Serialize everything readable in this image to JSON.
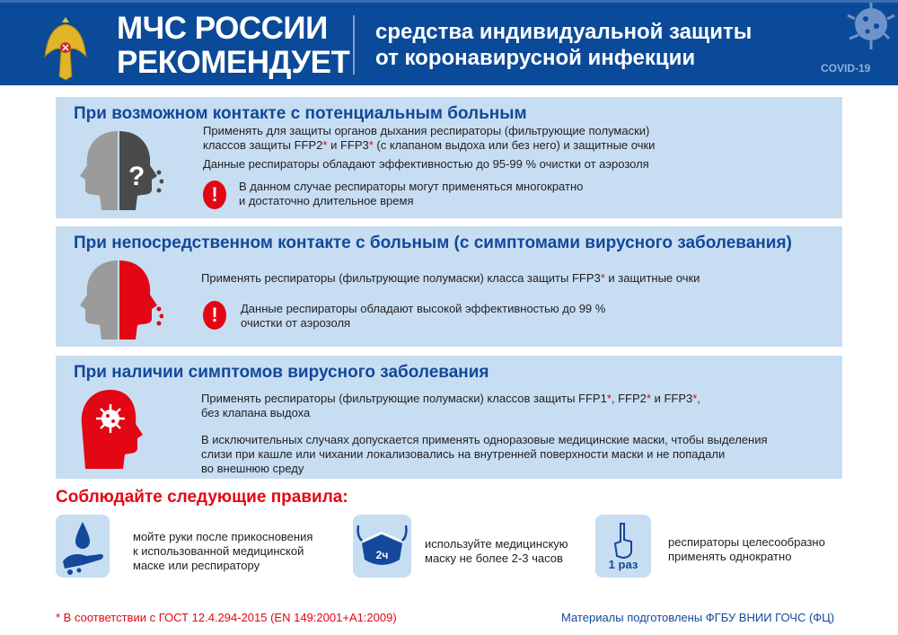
{
  "header": {
    "title_line1": "МЧС РОССИИ",
    "title_line2": "РЕКОМЕНДУЕТ",
    "subtitle_line1": "средства индивидуальной защиты",
    "subtitle_line2": "от коронавирусной инфекции",
    "badge": "COVID-19"
  },
  "sections": [
    {
      "title": "При возможном контакте с потенциальным больным",
      "p1a": "Применять для защиты органов дыхания респираторы (фильтрующие полумаски)",
      "p1b": "классов защиты  FFP2",
      "p1c": " и FFP3",
      "p1d": " (с клапаном выдоха или без него) и защитные очки",
      "p2": "Данные респираторы обладают эффективностью до 95-99 % очистки от аэрозоля",
      "warn1": "В данном случае респираторы могут применяться многократно",
      "warn2": "и достаточно длительное время"
    },
    {
      "title": "При непосредственном контакте с больным (с симптомами вирусного заболевания)",
      "p1a": "Применять респираторы (фильтрующие полумаски) класса защиты FFP3",
      "p1b": " и защитные очки",
      "warn1": "Данные респираторы обладают высокой эффективностью до 99 %",
      "warn2": "очистки от аэрозоля"
    },
    {
      "title": "При наличии симптомов вирусного заболевания",
      "p1a": "Применять респираторы (фильтрующие полумаски) классов защиты FFP1",
      "p1b": ", FFP2",
      "p1c": " и  FFP3",
      "p1d": ",",
      "p1e": "без клапана выдоха",
      "p2a": "В исключительных случаях допускается применять одноразовые медицинские маски, чтобы выделения",
      "p2b": "слизи при кашле или чихании локализовались на внутренней поверхности маски и не попадали",
      "p2c": "во внешнюю среду"
    }
  ],
  "asterisk": "*",
  "exclamation": "!",
  "rules": {
    "title": "Соблюдайте следующие правила:",
    "items": [
      {
        "icon": "hand-wash-icon",
        "l1": "мойте руки после прикосновения",
        "l2": "к использованной медицинской",
        "l3": "маске или респиратору"
      },
      {
        "icon": "mask-icon",
        "badge": "2ч",
        "l1": "используйте медицинскую",
        "l2": "маску не более 2-3 часов"
      },
      {
        "icon": "one-finger-icon",
        "badge": "1 раз",
        "l1": "респираторы целесообразно",
        "l2": "применять однократно"
      }
    ]
  },
  "footer": {
    "note": "* В соответствии с ГОСТ 12.4.294-2015 (EN 149:2001+A1:2009)",
    "credit": "Материалы подготовлены ФГБУ ВНИИ ГОЧС (ФЦ)"
  },
  "colors": {
    "header": "#0b4a98",
    "panel": "#c7ddf2",
    "title": "#13489a",
    "accent_red": "#e30613"
  }
}
